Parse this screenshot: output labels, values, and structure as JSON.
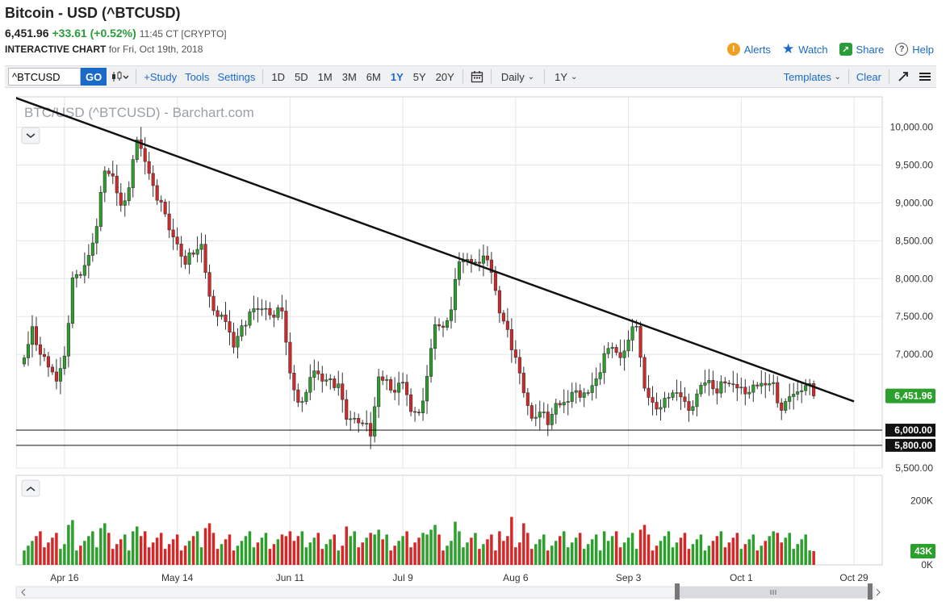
{
  "header": {
    "title": "Bitcoin - USD (^BTCUSD)",
    "last_price": "6,451.96",
    "change": "+33.61 (+0.52%)",
    "time": "11:45 CT [CRYPTO]",
    "chart_label": "INTERACTIVE CHART",
    "chart_date": "for Fri, Oct 19th, 2018"
  },
  "actions": {
    "alerts": "Alerts",
    "watch": "Watch",
    "share": "Share",
    "help": "Help",
    "alerts_icon": "alert-icon",
    "watch_icon": "star-icon",
    "share_icon": "share-icon",
    "help_icon": "help-icon"
  },
  "toolbar": {
    "symbol_value": "^BTCUSD",
    "go_label": "GO",
    "study_label": "+Study",
    "tools_label": "Tools",
    "settings_label": "Settings",
    "periods": [
      "1D",
      "5D",
      "1M",
      "3M",
      "6M",
      "1Y",
      "5Y",
      "20Y"
    ],
    "active_period": "1Y",
    "interval": "Daily",
    "range": "1Y",
    "templates_label": "Templates",
    "clear_label": "Clear"
  },
  "colors": {
    "up": "#2ca02c",
    "down": "#d62728",
    "accent": "#1a6ac8",
    "price_badge": "#2ca02c"
  },
  "chart_data": {
    "type": "candlestick",
    "title": "BTC/USD (^BTCUSD) - Barchart.com",
    "ylim": [
      5500,
      10400
    ],
    "y_ticks": [
      "10,000.00",
      "9,500.00",
      "9,000.00",
      "8,500.00",
      "8,000.00",
      "7,500.00",
      "7,000.00",
      "5,500.00"
    ],
    "y_tick_values": [
      10000,
      9500,
      9000,
      8500,
      8000,
      7500,
      7000,
      5500
    ],
    "x_ticks": [
      "Apr 16",
      "May 14",
      "Jun 11",
      "Jul 9",
      "Aug 6",
      "Sep 3",
      "Oct 1",
      "Oct 29"
    ],
    "x_tick_index": [
      10,
      38,
      66,
      94,
      122,
      150,
      178,
      206
    ],
    "levels": [
      {
        "label": "6,000.00",
        "value": 6000
      },
      {
        "label": "5,800.00",
        "value": 5800
      }
    ],
    "last_price_label": "6,451.96",
    "last_price": 6451.96,
    "trendline": [
      {
        "i": -8,
        "value": 10500
      },
      {
        "i": 206,
        "value": 6380
      }
    ],
    "volume_ticks": [
      "200K",
      "0K"
    ],
    "volume_tick_values": [
      200,
      0
    ],
    "volume_max": 280,
    "last_volume_label": "43K",
    "last_volume": 43,
    "close_anchors": [
      [
        0,
        6900
      ],
      [
        2,
        7400
      ],
      [
        4,
        7000
      ],
      [
        6,
        6800
      ],
      [
        8,
        6700
      ],
      [
        10,
        7000
      ],
      [
        12,
        8000
      ],
      [
        14,
        8000
      ],
      [
        16,
        8350
      ],
      [
        18,
        8700
      ],
      [
        20,
        9400
      ],
      [
        22,
        9300
      ],
      [
        24,
        9000
      ],
      [
        26,
        9200
      ],
      [
        28,
        9800
      ],
      [
        30,
        9600
      ],
      [
        32,
        9250
      ],
      [
        34,
        9000
      ],
      [
        36,
        8600
      ],
      [
        38,
        8500
      ],
      [
        40,
        8200
      ],
      [
        42,
        8300
      ],
      [
        44,
        8400
      ],
      [
        46,
        7800
      ],
      [
        48,
        7500
      ],
      [
        50,
        7400
      ],
      [
        52,
        7150
      ],
      [
        54,
        7400
      ],
      [
        56,
        7550
      ],
      [
        58,
        7550
      ],
      [
        60,
        7650
      ],
      [
        62,
        7500
      ],
      [
        64,
        7550
      ],
      [
        66,
        6700
      ],
      [
        68,
        6400
      ],
      [
        70,
        6500
      ],
      [
        72,
        6750
      ],
      [
        74,
        6700
      ],
      [
        76,
        6700
      ],
      [
        78,
        6600
      ],
      [
        80,
        6100
      ],
      [
        82,
        6200
      ],
      [
        84,
        6100
      ],
      [
        86,
        5900
      ],
      [
        88,
        6650
      ],
      [
        90,
        6700
      ],
      [
        92,
        6500
      ],
      [
        94,
        6600
      ],
      [
        96,
        6300
      ],
      [
        98,
        6250
      ],
      [
        100,
        6700
      ],
      [
        102,
        7350
      ],
      [
        104,
        7400
      ],
      [
        106,
        7600
      ],
      [
        108,
        8200
      ],
      [
        110,
        8200
      ],
      [
        112,
        8250
      ],
      [
        114,
        8300
      ],
      [
        116,
        8050
      ],
      [
        118,
        7600
      ],
      [
        120,
        7350
      ],
      [
        122,
        6950
      ],
      [
        124,
        6450
      ],
      [
        126,
        6200
      ],
      [
        128,
        6250
      ],
      [
        130,
        6050
      ],
      [
        132,
        6300
      ],
      [
        134,
        6400
      ],
      [
        136,
        6500
      ],
      [
        138,
        6400
      ],
      [
        140,
        6550
      ],
      [
        142,
        6700
      ],
      [
        144,
        7000
      ],
      [
        146,
        7050
      ],
      [
        148,
        7000
      ],
      [
        150,
        7200
      ],
      [
        152,
        7350
      ],
      [
        154,
        6500
      ],
      [
        156,
        6400
      ],
      [
        158,
        6300
      ],
      [
        160,
        6400
      ],
      [
        162,
        6550
      ],
      [
        164,
        6400
      ],
      [
        166,
        6300
      ],
      [
        168,
        6550
      ],
      [
        170,
        6700
      ],
      [
        172,
        6500
      ],
      [
        174,
        6600
      ],
      [
        176,
        6550
      ],
      [
        178,
        6600
      ],
      [
        180,
        6500
      ],
      [
        182,
        6550
      ],
      [
        184,
        6650
      ],
      [
        186,
        6650
      ],
      [
        188,
        6250
      ],
      [
        190,
        6400
      ],
      [
        192,
        6550
      ],
      [
        194,
        6600
      ],
      [
        196,
        6450
      ]
    ]
  }
}
